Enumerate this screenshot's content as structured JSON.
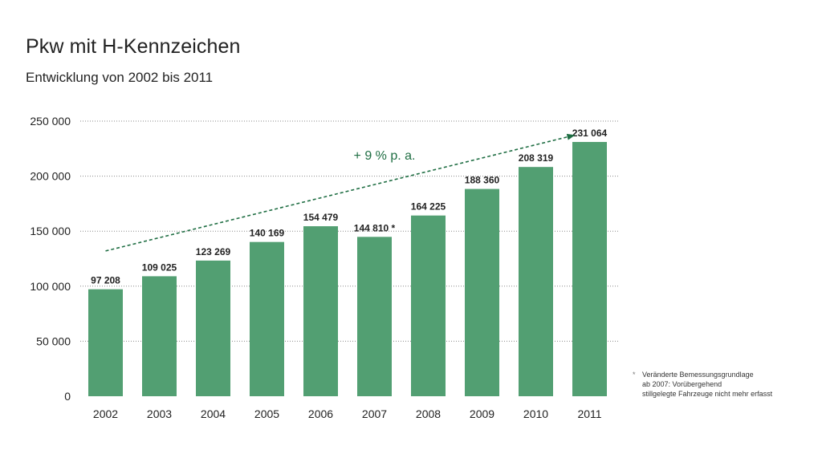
{
  "header": {
    "title": "Pkw mit H-Kennzeichen",
    "subtitle": "Entwicklung von 2002 bis 2011"
  },
  "chart_data": {
    "type": "bar",
    "title": "Pkw mit H-Kennzeichen",
    "subtitle": "Entwicklung von 2002 bis 2011",
    "xlabel": "",
    "ylabel": "",
    "categories": [
      "2002",
      "2003",
      "2004",
      "2005",
      "2006",
      "2007",
      "2008",
      "2009",
      "2010",
      "2011"
    ],
    "values": [
      97208,
      109025,
      123269,
      140169,
      154479,
      144810,
      164225,
      188360,
      208319,
      231064
    ],
    "value_labels": [
      "97 208",
      "109 025",
      "123 269",
      "140 169",
      "154 479",
      "144 810 *",
      "164 225",
      "188 360",
      "208 319",
      "231 064"
    ],
    "ylim": [
      0,
      250000
    ],
    "yticks": [
      0,
      50000,
      100000,
      150000,
      200000,
      250000
    ],
    "ytick_labels": [
      "0",
      "50 000",
      "100 000",
      "150 000",
      "200 000",
      "250 000"
    ],
    "grid": true,
    "legend": "none",
    "trend": {
      "label": "+ 9 % p. a.",
      "style": "dashed-arrow",
      "from": {
        "x": "2002",
        "y": 132000
      },
      "to": {
        "x": "2011",
        "y": 237000
      }
    },
    "colors": {
      "bar": "#529f72",
      "trend": "#1f6e43",
      "grid": "#8a8a8a"
    }
  },
  "footnote": {
    "marker": "*",
    "lines": [
      "Veränderte Bemessungsgrundlage",
      "ab 2007: Vorübergehend",
      "stillgelegte Fahrzeuge nicht mehr erfasst"
    ]
  }
}
